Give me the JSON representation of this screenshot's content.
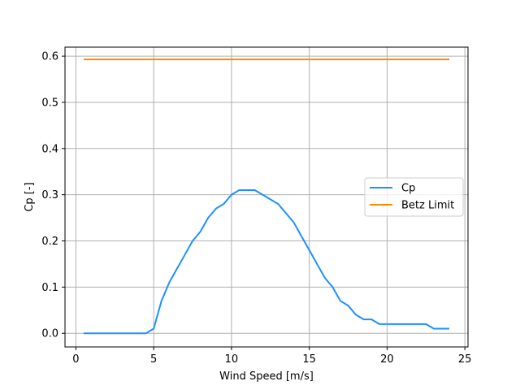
{
  "chart_data": {
    "type": "line",
    "xlabel": "Wind Speed [m/s]",
    "ylabel": "Cp [-]",
    "xlim": [
      -0.7,
      25.2
    ],
    "ylim": [
      -0.0295,
      0.6195
    ],
    "xticks": [
      0,
      5,
      10,
      15,
      20,
      25
    ],
    "yticks": [
      0.0,
      0.1,
      0.2,
      0.3,
      0.4,
      0.5,
      0.6
    ],
    "xtick_labels": [
      "0",
      "5",
      "10",
      "15",
      "20",
      "25"
    ],
    "ytick_labels": [
      "0.0",
      "0.1",
      "0.2",
      "0.3",
      "0.4",
      "0.5",
      "0.6"
    ],
    "grid": true,
    "legend_position": "center-right",
    "series": [
      {
        "name": "Cp",
        "color": "#1e90ff",
        "x": [
          0.5,
          1,
          1.5,
          2,
          2.5,
          3,
          3.5,
          4,
          4.5,
          5,
          5.5,
          6,
          6.5,
          7,
          7.5,
          8,
          8.5,
          9,
          9.5,
          10,
          10.5,
          11,
          11.5,
          12,
          12.5,
          13,
          13.5,
          14,
          14.5,
          15,
          15.5,
          16,
          16.5,
          17,
          17.5,
          18,
          18.5,
          19,
          19.5,
          20,
          20.5,
          21,
          21.5,
          22,
          22.5,
          23,
          23.5,
          24
        ],
        "y": [
          0,
          0,
          0,
          0,
          0,
          0,
          0,
          0,
          0,
          0.01,
          0.07,
          0.11,
          0.14,
          0.17,
          0.2,
          0.22,
          0.25,
          0.27,
          0.28,
          0.3,
          0.31,
          0.31,
          0.31,
          0.3,
          0.29,
          0.28,
          0.26,
          0.24,
          0.21,
          0.18,
          0.15,
          0.12,
          0.1,
          0.07,
          0.06,
          0.04,
          0.03,
          0.03,
          0.02,
          0.02,
          0.02,
          0.02,
          0.02,
          0.02,
          0.02,
          0.01,
          0.01,
          0.01
        ]
      },
      {
        "name": "Betz Limit",
        "color": "#ff8c00",
        "x": [
          0.5,
          24
        ],
        "y": [
          0.593,
          0.593
        ]
      }
    ]
  }
}
